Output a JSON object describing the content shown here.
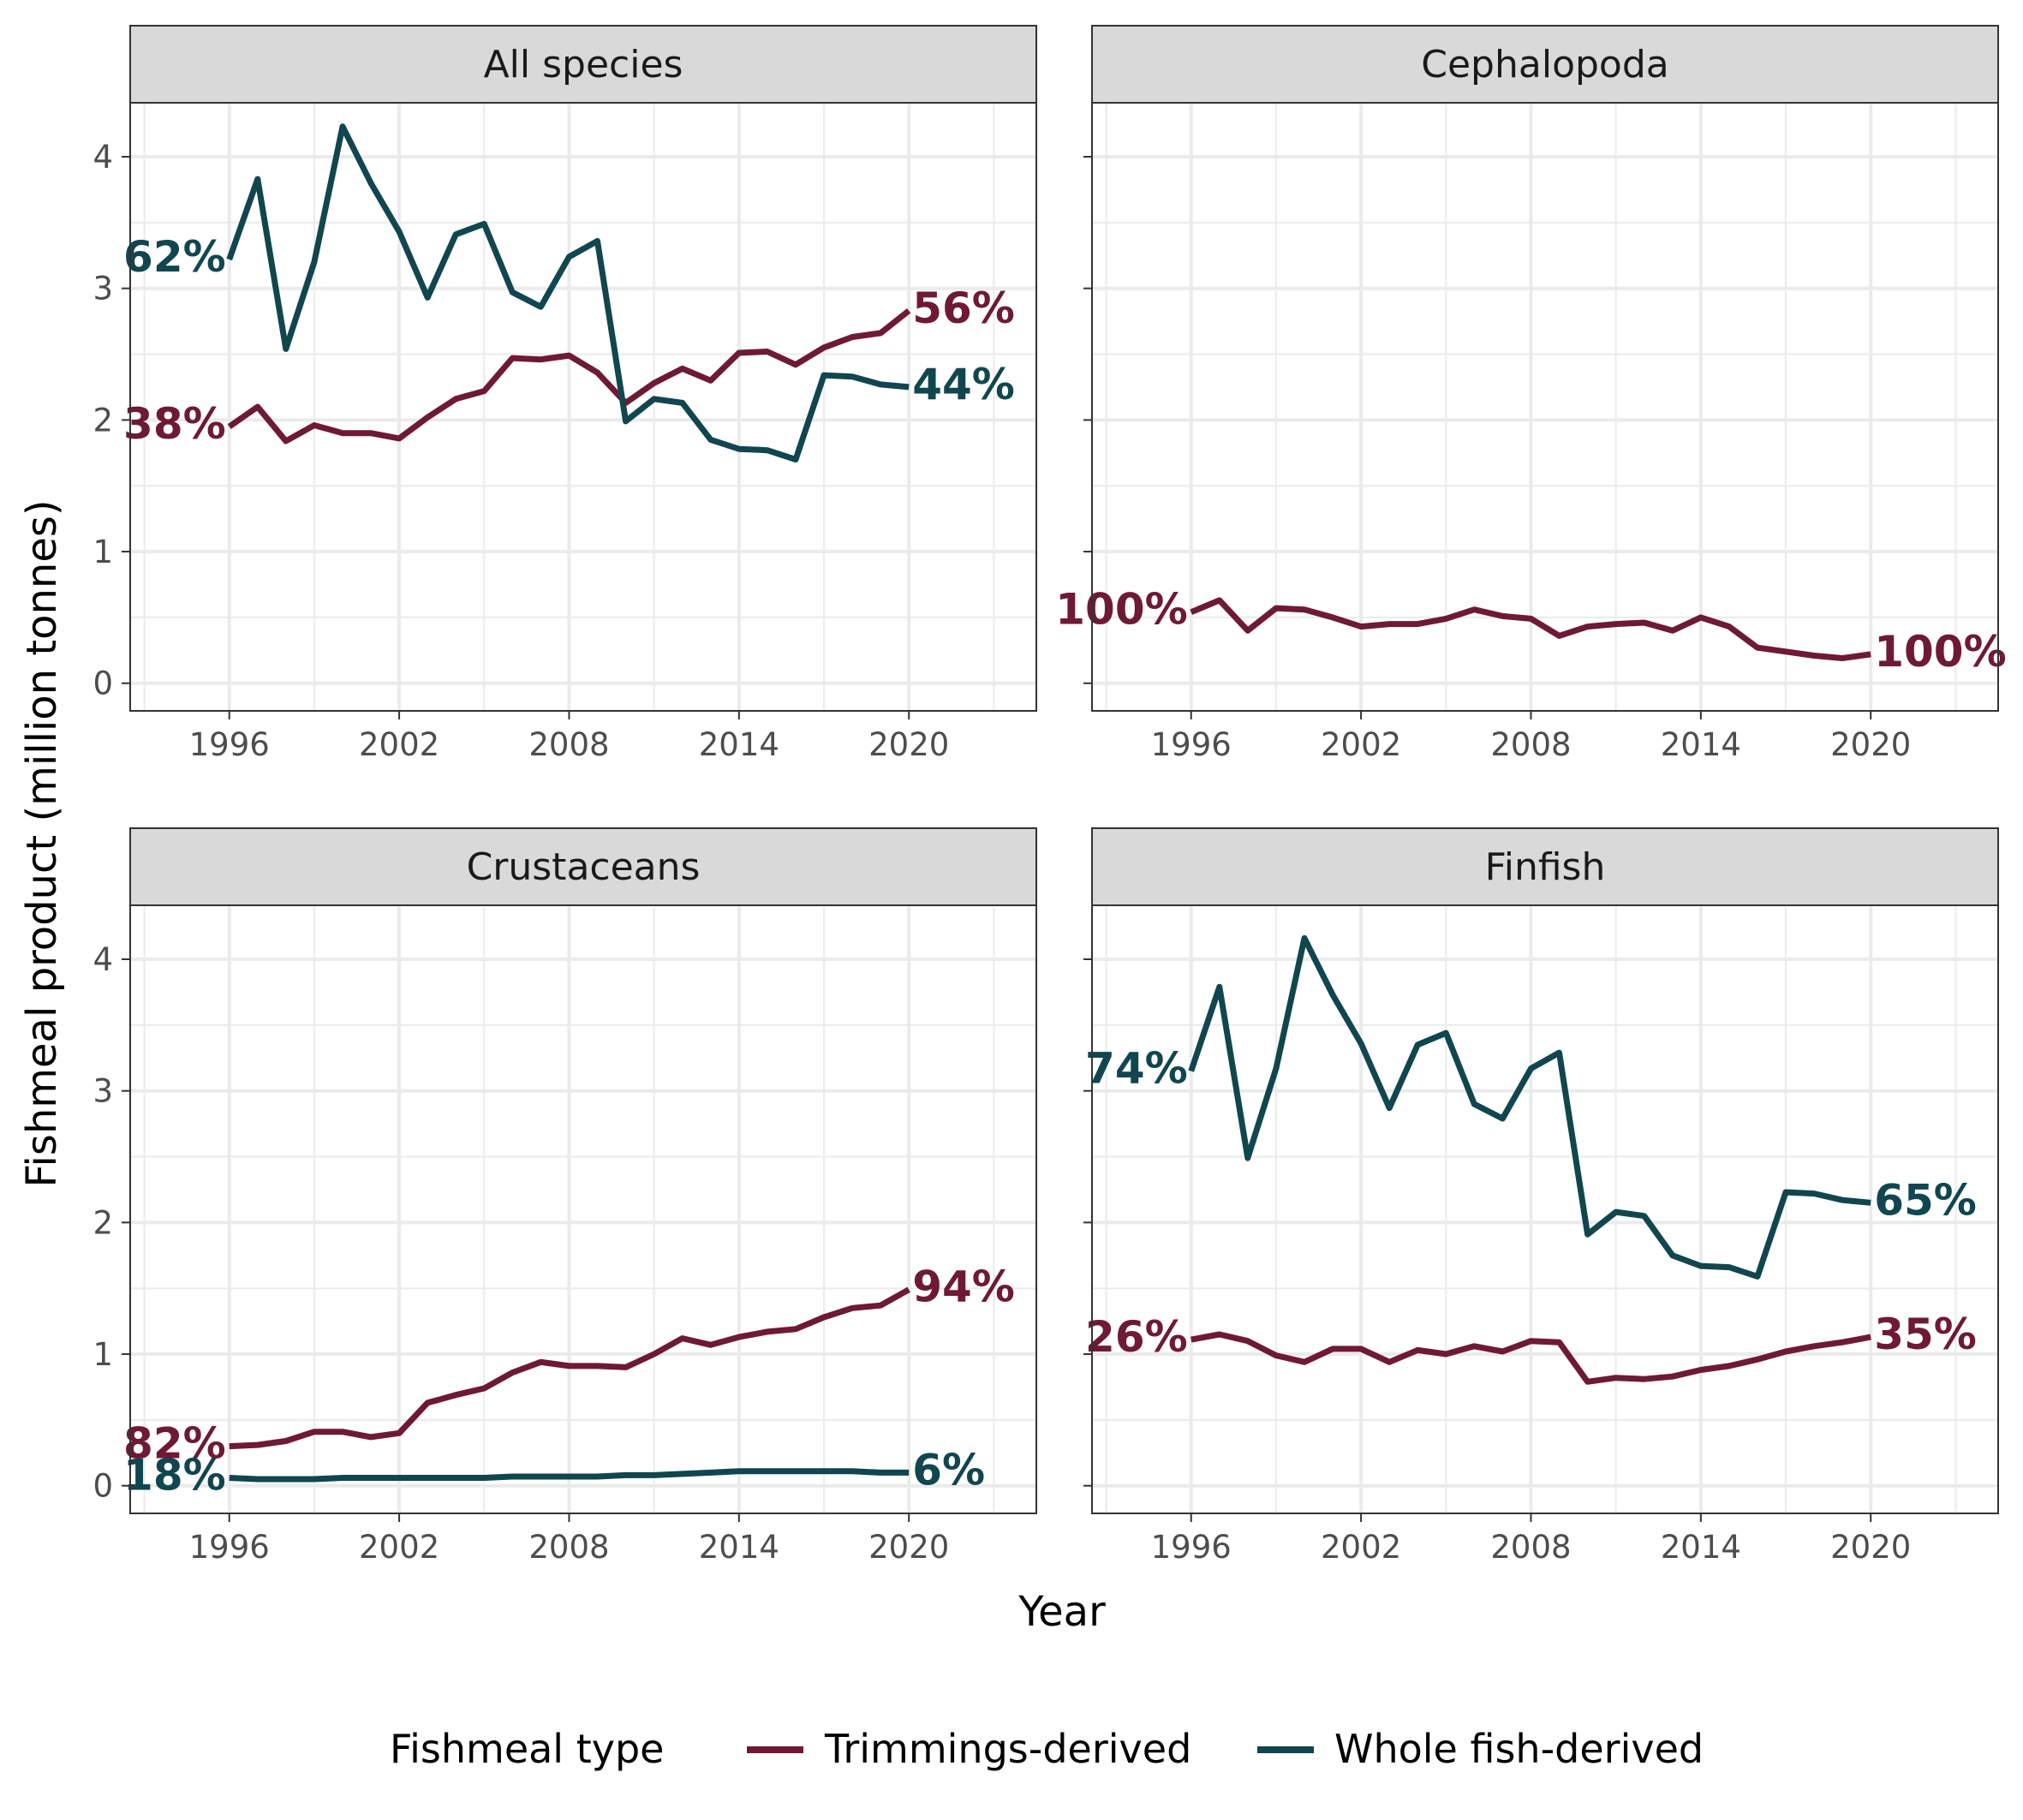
{
  "chart_data": {
    "type": "line",
    "xlabel": "Year",
    "ylabel": "Fishmeal product (million tonnes)",
    "xlim": [
      1992.5,
      2024.5
    ],
    "ylim": [
      -0.21,
      4.41
    ],
    "x_ticks": [
      1996,
      2002,
      2008,
      2014,
      2020
    ],
    "y_ticks": [
      0,
      1,
      2,
      3,
      4
    ],
    "grid": true,
    "legend": {
      "title": "Fishmeal type",
      "placement": "bottom",
      "items": [
        {
          "name": "Trimmings-derived",
          "color": "#6E1A35"
        },
        {
          "name": "Whole fish-derived",
          "color": "#11464F"
        }
      ]
    },
    "colors": {
      "trimmings": "#6E1A35",
      "whole": "#11464F"
    },
    "years": [
      1996,
      1997,
      1998,
      1999,
      2000,
      2001,
      2002,
      2003,
      2004,
      2005,
      2006,
      2007,
      2008,
      2009,
      2010,
      2011,
      2012,
      2013,
      2014,
      2015,
      2016,
      2017,
      2018,
      2019,
      2020
    ],
    "panels": [
      {
        "title": "All species",
        "series": [
          {
            "name": "Trimmings-derived",
            "start_label": "38%",
            "end_label": "56%",
            "values": [
              1.95,
              2.1,
              1.84,
              1.96,
              1.9,
              1.9,
              1.86,
              2.02,
              2.16,
              2.22,
              2.47,
              2.46,
              2.49,
              2.36,
              2.13,
              2.28,
              2.39,
              2.3,
              2.51,
              2.52,
              2.42,
              2.55,
              2.63,
              2.66,
              2.83
            ]
          },
          {
            "name": "Whole fish-derived",
            "start_label": "62%",
            "end_label": "44%",
            "values": [
              3.22,
              3.83,
              2.54,
              3.2,
              4.23,
              3.8,
              3.43,
              2.93,
              3.41,
              3.49,
              2.97,
              2.86,
              3.24,
              3.36,
              1.99,
              2.16,
              2.13,
              1.85,
              1.78,
              1.77,
              1.7,
              2.34,
              2.33,
              2.27,
              2.25
            ]
          }
        ]
      },
      {
        "title": "Cephalopoda",
        "series": [
          {
            "name": "Trimmings-derived",
            "start_label": "100%",
            "end_label": "100%",
            "values": [
              0.54,
              0.63,
              0.4,
              0.57,
              0.56,
              0.5,
              0.43,
              0.45,
              0.45,
              0.49,
              0.56,
              0.51,
              0.49,
              0.36,
              0.43,
              0.45,
              0.46,
              0.4,
              0.5,
              0.43,
              0.27,
              0.24,
              0.21,
              0.19,
              0.22
            ]
          }
        ]
      },
      {
        "title": "Crustaceans",
        "series": [
          {
            "name": "Trimmings-derived",
            "start_label": "82%",
            "end_label": "94%",
            "values": [
              0.3,
              0.31,
              0.34,
              0.41,
              0.41,
              0.37,
              0.4,
              0.63,
              0.69,
              0.74,
              0.86,
              0.94,
              0.91,
              0.91,
              0.9,
              1.0,
              1.12,
              1.07,
              1.13,
              1.17,
              1.19,
              1.28,
              1.35,
              1.37,
              1.49
            ]
          },
          {
            "name": "Whole fish-derived",
            "start_label": "18%",
            "end_label": "6%",
            "values": [
              0.06,
              0.05,
              0.05,
              0.05,
              0.06,
              0.06,
              0.06,
              0.06,
              0.06,
              0.06,
              0.07,
              0.07,
              0.07,
              0.07,
              0.08,
              0.08,
              0.09,
              0.1,
              0.11,
              0.11,
              0.11,
              0.11,
              0.11,
              0.1,
              0.1
            ]
          }
        ]
      },
      {
        "title": "Finfish",
        "series": [
          {
            "name": "Trimmings-derived",
            "start_label": "26%",
            "end_label": "35%",
            "values": [
              1.11,
              1.15,
              1.1,
              0.99,
              0.94,
              1.04,
              1.04,
              0.94,
              1.03,
              1.0,
              1.06,
              1.02,
              1.1,
              1.09,
              0.79,
              0.82,
              0.81,
              0.83,
              0.88,
              0.91,
              0.96,
              1.02,
              1.06,
              1.09,
              1.13
            ]
          },
          {
            "name": "Whole fish-derived",
            "start_label": "74%",
            "end_label": "65%",
            "values": [
              3.15,
              3.79,
              2.49,
              3.17,
              4.16,
              3.73,
              3.36,
              2.87,
              3.35,
              3.44,
              2.9,
              2.79,
              3.17,
              3.29,
              1.91,
              2.08,
              2.05,
              1.75,
              1.67,
              1.66,
              1.59,
              2.23,
              2.22,
              2.17,
              2.15
            ]
          }
        ]
      }
    ]
  }
}
